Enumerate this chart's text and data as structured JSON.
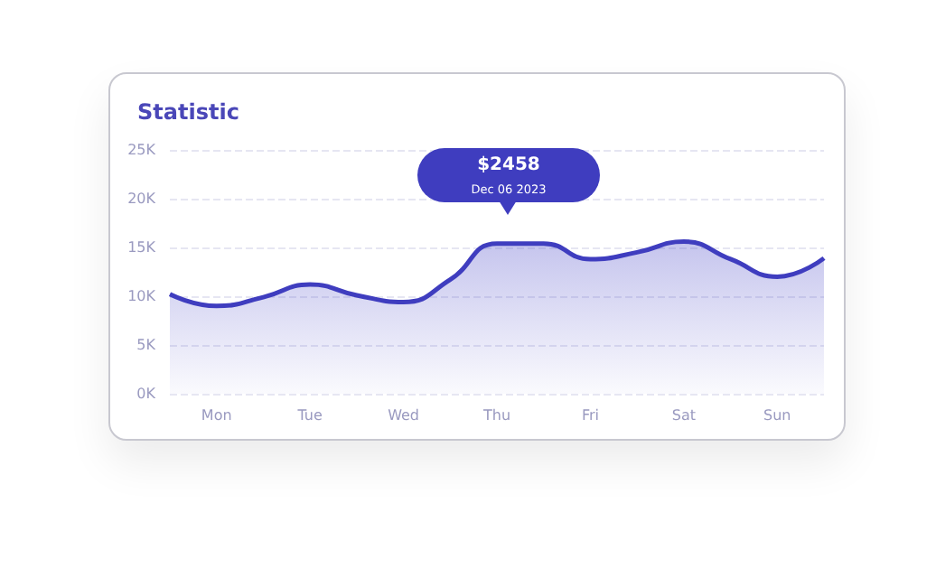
{
  "chart_data": {
    "type": "area",
    "title": "Statistic",
    "categories": [
      null,
      "Mon",
      null,
      "Tue",
      null,
      "Wed",
      null,
      "Thu",
      null,
      "Fri",
      null,
      "Sat",
      null,
      "Sun",
      null
    ],
    "values": [
      10200,
      9000,
      9900,
      11200,
      10100,
      9400,
      11700,
      15400,
      15400,
      13800,
      14500,
      15600,
      13800,
      12000,
      13900
    ],
    "color": "#3f3dbf",
    "ylim": [
      0,
      25000
    ],
    "yticks": [
      {
        "value": 0,
        "label": "0K"
      },
      {
        "value": 5000,
        "label": "5K"
      },
      {
        "value": 10000,
        "label": "10K"
      },
      {
        "value": 15000,
        "label": "15K"
      },
      {
        "value": 20000,
        "label": "20K"
      },
      {
        "value": 25000,
        "label": "25K"
      }
    ],
    "grid": "y",
    "marker": "none",
    "annotations": [
      "$2458",
      "Dec 06 2023"
    ]
  }
}
